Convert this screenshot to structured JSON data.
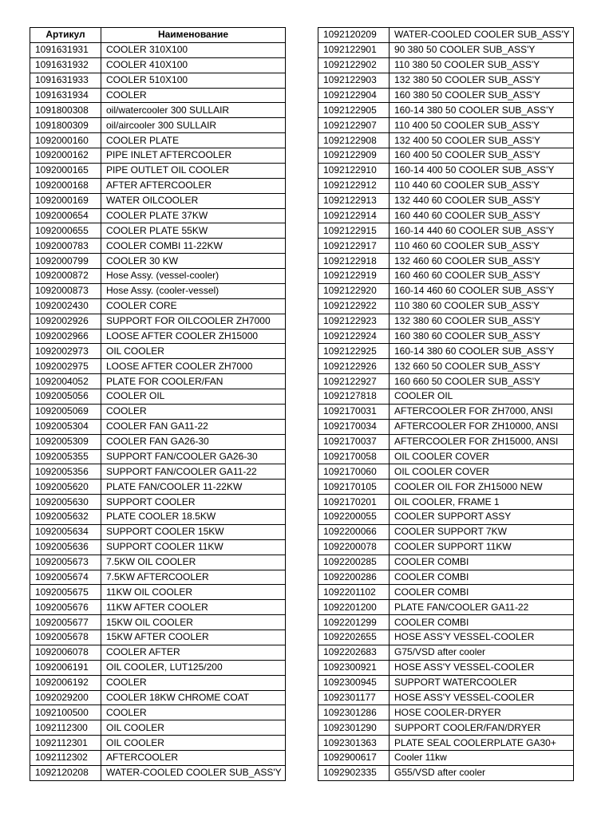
{
  "header": {
    "article": "Артикул",
    "name": "Наименование"
  },
  "left_rows": [
    [
      "1091631931",
      "COOLER 310X100"
    ],
    [
      "1091631932",
      "COOLER 410X100"
    ],
    [
      "1091631933",
      "COOLER 510X100"
    ],
    [
      "1091631934",
      "COOLER"
    ],
    [
      "1091800308",
      "oil/watercooler 300 SULLAIR"
    ],
    [
      "1091800309",
      "oil/aircooler 300  SULLAIR"
    ],
    [
      "1092000160",
      "COOLER PLATE"
    ],
    [
      "1092000162",
      "PIPE INLET AFTERCOOLER"
    ],
    [
      "1092000165",
      "PIPE OUTLET OIL COOLER"
    ],
    [
      "1092000168",
      "AFTER AFTERCOOLER"
    ],
    [
      "1092000169",
      "WATER OILCOOLER"
    ],
    [
      "1092000654",
      "COOLER PLATE 37KW"
    ],
    [
      "1092000655",
      "COOLER PLATE 55KW"
    ],
    [
      "1092000783",
      "COOLER COMBI 11-22KW"
    ],
    [
      "1092000799",
      "COOLER 30 KW"
    ],
    [
      "1092000872",
      "Hose Assy. (vessel-cooler)"
    ],
    [
      "1092000873",
      "Hose Assy. (cooler-vessel)"
    ],
    [
      "1092002430",
      "COOLER CORE"
    ],
    [
      "1092002926",
      "SUPPORT FOR OILCOOLER ZH7000"
    ],
    [
      "1092002966",
      "LOOSE AFTER COOLER ZH15000"
    ],
    [
      "1092002973",
      "OIL COOLER"
    ],
    [
      "1092002975",
      "LOOSE AFTER COOLER ZH7000"
    ],
    [
      "1092004052",
      "PLATE FOR COOLER/FAN"
    ],
    [
      "1092005056",
      "COOLER OIL"
    ],
    [
      "1092005069",
      "COOLER"
    ],
    [
      "1092005304",
      "COOLER FAN GA11-22"
    ],
    [
      "1092005309",
      "COOLER FAN GA26-30"
    ],
    [
      "1092005355",
      "SUPPORT FAN/COOLER GA26-30"
    ],
    [
      "1092005356",
      "SUPPORT FAN/COOLER GA11-22"
    ],
    [
      "1092005620",
      "PLATE FAN/COOLER 11-22KW"
    ],
    [
      "1092005630",
      "SUPPORT COOLER"
    ],
    [
      "1092005632",
      "PLATE COOLER 18.5KW"
    ],
    [
      "1092005634",
      "SUPPORT COOLER 15KW"
    ],
    [
      "1092005636",
      "SUPPORT COOLER 11KW"
    ],
    [
      "1092005673",
      "7.5KW OIL COOLER"
    ],
    [
      "1092005674",
      "7.5KW AFTERCOOLER"
    ],
    [
      "1092005675",
      "11KW OIL COOLER"
    ],
    [
      "1092005676",
      "11KW AFTER COOLER"
    ],
    [
      "1092005677",
      "15KW OIL COOLER"
    ],
    [
      "1092005678",
      "15KW AFTER COOLER"
    ],
    [
      "1092006078",
      "COOLER AFTER"
    ],
    [
      "1092006191",
      "OIL COOLER, LUT125/200"
    ],
    [
      "1092006192",
      "COOLER"
    ],
    [
      "1092029200",
      "COOLER 18KW CHROME COAT"
    ],
    [
      "1092100500",
      "COOLER"
    ],
    [
      "1092112300",
      "OIL COOLER"
    ],
    [
      "1092112301",
      "OIL COOLER"
    ],
    [
      "1092112302",
      "AFTERCOOLER"
    ],
    [
      "1092120208",
      "WATER-COOLED COOLER SUB_ASS'Y"
    ]
  ],
  "right_rows": [
    [
      "1092120209",
      "WATER-COOLED COOLER SUB_ASS'Y"
    ],
    [
      "1092122901",
      "90 380 50 COOLER SUB_ASS'Y"
    ],
    [
      "1092122902",
      "110 380 50 COOLER SUB_ASS'Y"
    ],
    [
      "1092122903",
      "132 380 50 COOLER SUB_ASS'Y"
    ],
    [
      "1092122904",
      "160 380 50 COOLER SUB_ASS'Y"
    ],
    [
      "1092122905",
      "160-14 380 50 COOLER SUB_ASS'Y"
    ],
    [
      "1092122907",
      "110 400 50 COOLER SUB_ASS'Y"
    ],
    [
      "1092122908",
      "132 400 50 COOLER SUB_ASS'Y"
    ],
    [
      "1092122909",
      "160 400 50 COOLER SUB_ASS'Y"
    ],
    [
      "1092122910",
      "160-14 400 50 COOLER SUB_ASS'Y"
    ],
    [
      "1092122912",
      "110 440 60 COOLER SUB_ASS'Y"
    ],
    [
      "1092122913",
      "132 440 60 COOLER SUB_ASS'Y"
    ],
    [
      "1092122914",
      "160 440 60 COOLER SUB_ASS'Y"
    ],
    [
      "1092122915",
      "160-14 440 60 COOLER SUB_ASS'Y"
    ],
    [
      "1092122917",
      "110 460 60 COOLER SUB_ASS'Y"
    ],
    [
      "1092122918",
      "132 460 60 COOLER SUB_ASS'Y"
    ],
    [
      "1092122919",
      "160 460 60 COOLER SUB_ASS'Y"
    ],
    [
      "1092122920",
      "160-14 460 60 COOLER SUB_ASS'Y"
    ],
    [
      "1092122922",
      "110 380 60 COOLER SUB_ASS'Y"
    ],
    [
      "1092122923",
      "132 380 60 COOLER SUB_ASS'Y"
    ],
    [
      "1092122924",
      "160 380 60 COOLER SUB_ASS'Y"
    ],
    [
      "1092122925",
      "160-14 380 60 COOLER SUB_ASS'Y"
    ],
    [
      "1092122926",
      "132 660 50 COOLER SUB_ASS'Y"
    ],
    [
      "1092122927",
      "160 660 50 COOLER SUB_ASS'Y"
    ],
    [
      "1092127818",
      "COOLER OIL"
    ],
    [
      "1092170031",
      "AFTERCOOLER FOR ZH7000, ANSI"
    ],
    [
      "1092170034",
      "AFTERCOOLER FOR ZH10000, ANSI"
    ],
    [
      "1092170037",
      "AFTERCOOLER FOR ZH15000, ANSI"
    ],
    [
      "1092170058",
      "OIL COOLER COVER"
    ],
    [
      "1092170060",
      "OIL COOLER COVER"
    ],
    [
      "1092170105",
      "COOLER OIL FOR ZH15000 NEW"
    ],
    [
      "1092170201",
      "OIL COOLER, FRAME 1"
    ],
    [
      "1092200055",
      "COOLER SUPPORT ASSY"
    ],
    [
      "1092200066",
      "COOLER SUPPORT 7KW"
    ],
    [
      "1092200078",
      "COOLER SUPPORT 11KW"
    ],
    [
      "1092200285",
      "COOLER COMBI"
    ],
    [
      "1092200286",
      "COOLER COMBI"
    ],
    [
      "1092201102",
      "COOLER COMBI"
    ],
    [
      "1092201200",
      "PLATE FAN/COOLER GA11-22"
    ],
    [
      "1092201299",
      "COOLER COMBI"
    ],
    [
      "1092202655",
      "HOSE ASS'Y VESSEL-COOLER"
    ],
    [
      "1092202683",
      "G75/VSD after cooler"
    ],
    [
      "1092300921",
      "HOSE ASS'Y VESSEL-COOLER"
    ],
    [
      "1092300945",
      "SUPPORT WATERCOOLER"
    ],
    [
      "1092301177",
      "HOSE ASS'Y VESSEL-COOLER"
    ],
    [
      "1092301286",
      "HOSE COOLER-DRYER"
    ],
    [
      "1092301290",
      "SUPPORT COOLER/FAN/DRYER"
    ],
    [
      "1092301363",
      "PLATE SEAL COOLERPLATE GA30+"
    ],
    [
      "1092900617",
      "Cooler 11kw"
    ],
    [
      "1092902335",
      "G55/VSD after cooler"
    ]
  ]
}
